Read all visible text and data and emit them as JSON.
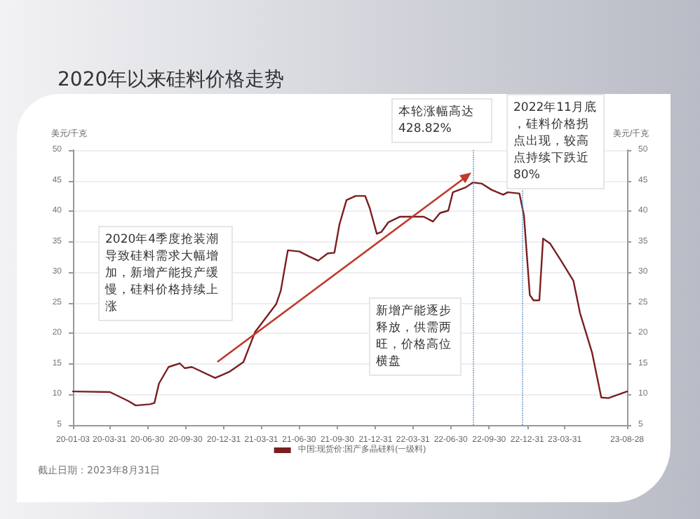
{
  "chart_data": {
    "type": "line",
    "title": "2020年以来硅料价格走势",
    "ylabel": "美元/千克",
    "y2label": "美元/千克",
    "x": [
      "2020-01-03",
      "2020-04-01",
      "2020-05-16",
      "2020-06-02",
      "2020-07-06",
      "2020-07-17",
      "2020-07-28",
      "2020-08-20",
      "2020-09-16",
      "2020-09-28",
      "2020-10-15",
      "2020-12-10",
      "2020-12-27",
      "2021-01-13",
      "2021-02-16",
      "2021-03-16",
      "2021-05-06",
      "2021-05-17",
      "2021-06-03",
      "2021-07-01",
      "2021-07-24",
      "2021-08-15",
      "2021-09-07",
      "2021-09-23",
      "2021-10-05",
      "2021-10-22",
      "2021-11-13",
      "2021-12-06",
      "2021-12-17",
      "2022-01-03",
      "2022-01-14",
      "2022-01-31",
      "2022-02-28",
      "2022-04-03",
      "2022-04-26",
      "2022-05-18",
      "2022-06-04",
      "2022-06-24",
      "2022-07-05",
      "2022-08-05",
      "2022-08-22",
      "2022-09-13",
      "2022-10-06",
      "2022-11-03",
      "2022-11-14",
      "2022-12-12",
      "2022-12-23",
      "2023-01-06",
      "2023-01-15",
      "2023-01-29",
      "2023-02-07",
      "2023-02-24",
      "2023-03-24",
      "2023-04-21",
      "2023-05-07",
      "2023-06-05",
      "2023-06-27",
      "2023-07-14",
      "2023-08-28"
    ],
    "series": [
      {
        "name": "中国:现货价:国产多晶硅料(一级料)",
        "color": "#7a1f1f",
        "values": [
          10.5,
          10.4,
          8.9,
          8.2,
          8.4,
          8.6,
          11.8,
          14.5,
          15.1,
          14.3,
          14.5,
          12.7,
          13.2,
          13.7,
          15.3,
          20.2,
          24.8,
          27,
          33.6,
          33.4,
          32.6,
          31.9,
          33.1,
          33.2,
          37.8,
          41.8,
          42.5,
          42.5,
          40.5,
          36.3,
          36.6,
          38.2,
          39.1,
          39.1,
          39.1,
          38.3,
          39.7,
          40.1,
          43.1,
          43.9,
          44.7,
          44.5,
          43.5,
          42.7,
          43.1,
          42.9,
          39.3,
          26.3,
          25.4,
          25.4,
          35.5,
          34.7,
          31.7,
          28.6,
          23.3,
          16.8,
          9.5,
          9.4,
          10.5
        ]
      }
    ],
    "xlim": [
      "2020-01-03",
      "2023-08-28"
    ],
    "xticks": [
      {
        "value": "2020-01-03",
        "label": "20-01-03"
      },
      {
        "value": "2020-03-31",
        "label": "20-03-31"
      },
      {
        "value": "2020-06-30",
        "label": "20-06-30"
      },
      {
        "value": "2020-09-30",
        "label": "20-09-30"
      },
      {
        "value": "2020-12-31",
        "label": "20-12-31"
      },
      {
        "value": "2021-03-31",
        "label": "21-03-31"
      },
      {
        "value": "2021-06-30",
        "label": "21-06-30"
      },
      {
        "value": "2021-09-30",
        "label": "21-09-30"
      },
      {
        "value": "2021-12-31",
        "label": "21-12-31"
      },
      {
        "value": "2022-03-31",
        "label": "22-03-31"
      },
      {
        "value": "2022-06-30",
        "label": "22-06-30"
      },
      {
        "value": "2022-09-30",
        "label": "22-09-30"
      },
      {
        "value": "2022-12-31",
        "label": "22-12-31"
      },
      {
        "value": "2023-03-31",
        "label": "23-03-31"
      },
      {
        "value": "2023-08-28",
        "label": "23-08-28"
      }
    ],
    "ylim": [
      5,
      50
    ],
    "yticks": [
      5,
      10,
      15,
      20,
      25,
      30,
      35,
      40,
      45,
      50
    ],
    "y2lim": [
      5,
      50
    ],
    "y2ticks": [
      5,
      10,
      15,
      20,
      25,
      30,
      35,
      40,
      45,
      50
    ],
    "ref_lines": [
      {
        "axis": "x",
        "value": "2022-08-22",
        "color": "#5b8fc9",
        "line_style": "dotted"
      },
      {
        "axis": "x",
        "value": "2022-12-19",
        "color": "#5b8fc9",
        "line_style": "dotted"
      }
    ],
    "annotations": [
      "2020年4季度抢装潮导致硅料需求大幅增加，新增产能投产缓慢，硅料价格持续上涨",
      "本轮涨幅高达428.82%",
      "2022年11月底，硅料价格拐点出现，较高点持续下跌近80%",
      "新增产能逐步释放，供需两旺，价格高位横盘",
      "截止日期：2023年8月31日"
    ],
    "grid": "y",
    "legend": "bottom",
    "marker": "none",
    "line_style": "solid"
  }
}
